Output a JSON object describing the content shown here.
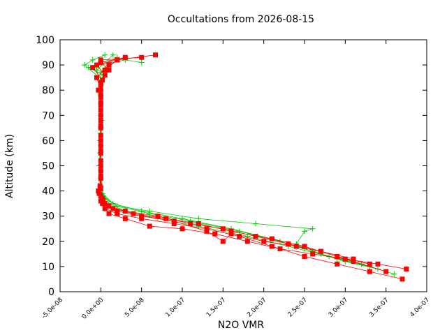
{
  "chart_data": {
    "type": "scatter",
    "title": "Occultations from 2026-08-15",
    "xlabel": "N2O VMR",
    "ylabel": "Altitude (km)",
    "xlim": [
      -5e-08,
      4e-07
    ],
    "ylim": [
      0,
      100
    ],
    "grid": false,
    "legend": "none",
    "x_ticks": [
      -5e-08,
      0,
      5e-08,
      1e-07,
      1.5e-07,
      2e-07,
      2.5e-07,
      3e-07,
      3.5e-07,
      4e-07
    ],
    "x_tick_labels": [
      "-5.0e-08",
      "0.0e+00",
      "5.0e-08",
      "1.0e-07",
      "1.5e-07",
      "2.0e-07",
      "2.5e-07",
      "3.0e-07",
      "3.5e-07",
      "4.0e-07"
    ],
    "y_ticks": [
      0,
      10,
      20,
      30,
      40,
      50,
      60,
      70,
      80,
      90,
      100
    ],
    "y_tick_labels": [
      "0",
      "10",
      "20",
      "30",
      "40",
      "50",
      "60",
      "70",
      "80",
      "90",
      "100"
    ],
    "series": [
      {
        "marker": "plus",
        "color": "#00cc00",
        "profiles": [
          [
            [
              3.6e-07,
              7
            ],
            [
              3.2e-07,
              11
            ],
            [
              2.8e-07,
              14
            ],
            [
              2.3e-07,
              18
            ],
            [
              1.8e-07,
              22
            ],
            [
              1.2e-07,
              26
            ],
            [
              7e-08,
              29
            ],
            [
              3e-08,
              32
            ],
            [
              1e-08,
              35
            ],
            [
              0,
              40
            ],
            [
              -2e-09,
              50
            ],
            [
              -1e-09,
              60
            ],
            [
              0,
              70
            ],
            [
              0,
              80
            ],
            [
              0,
              87
            ],
            [
              1e-08,
              91
            ],
            [
              2e-08,
              93
            ]
          ],
          [
            [
              3.4e-07,
              9
            ],
            [
              3e-07,
              12
            ],
            [
              2.6e-07,
              16
            ],
            [
              2.2e-07,
              20
            ],
            [
              1.7e-07,
              24
            ],
            [
              1.1e-07,
              28
            ],
            [
              6e-08,
              31
            ],
            [
              2e-08,
              34
            ],
            [
              5e-09,
              37
            ],
            [
              0,
              42
            ],
            [
              -1e-09,
              55
            ],
            [
              0,
              65
            ],
            [
              0,
              75
            ],
            [
              2e-09,
              84
            ],
            [
              -2e-08,
              90
            ],
            [
              -1e-08,
              92
            ],
            [
              5e-09,
              94
            ]
          ],
          [
            [
              3.3e-07,
              10
            ],
            [
              2.9e-07,
              13
            ],
            [
              2.5e-07,
              17
            ],
            [
              2.1e-07,
              21
            ],
            [
              1.6e-07,
              25
            ],
            [
              1e-07,
              29
            ],
            [
              5e-08,
              32
            ],
            [
              1.5e-08,
              35
            ],
            [
              2e-09,
              39
            ],
            [
              0,
              48
            ],
            [
              0,
              58
            ],
            [
              1e-09,
              68
            ],
            [
              0,
              78
            ],
            [
              3e-09,
              86
            ],
            [
              -1.5e-08,
              89
            ],
            [
              3e-08,
              92
            ],
            [
              5e-08,
              91
            ]
          ],
          [
            [
              3.2e-07,
              11
            ],
            [
              2.7e-07,
              15
            ],
            [
              2.4e-07,
              19
            ],
            [
              2.5e-07,
              24
            ],
            [
              2.6e-07,
              25
            ],
            [
              1.9e-07,
              27
            ],
            [
              1.2e-07,
              29
            ],
            [
              6e-08,
              32
            ],
            [
              2e-08,
              34
            ],
            [
              3e-09,
              38
            ],
            [
              0,
              45
            ],
            [
              0,
              63
            ],
            [
              0,
              82
            ],
            [
              -5e-09,
              88
            ],
            [
              1.5e-08,
              94
            ]
          ]
        ]
      },
      {
        "marker": "square",
        "color": "#ff0000",
        "profiles": [
          [
            [
              3.75e-07,
              9
            ],
            [
              3.4e-07,
              11
            ],
            [
              3e-07,
              13
            ],
            [
              2.6e-07,
              15
            ],
            [
              2.2e-07,
              17
            ],
            [
              1.8e-07,
              20
            ],
            [
              1.4e-07,
              23
            ],
            [
              1e-07,
              25
            ],
            [
              6e-08,
              26
            ],
            [
              3e-08,
              29
            ],
            [
              1e-08,
              31
            ],
            [
              2e-09,
              35
            ],
            [
              0,
              38
            ],
            [
              0,
              45
            ],
            [
              0,
              55
            ],
            [
              0,
              65
            ],
            [
              0,
              75
            ],
            [
              0,
              82
            ],
            [
              5e-09,
              88
            ],
            [
              2e-08,
              92
            ],
            [
              6.7e-08,
              94
            ]
          ],
          [
            [
              3.7e-07,
              5
            ],
            [
              3.3e-07,
              8
            ],
            [
              2.9e-07,
              11
            ],
            [
              2.5e-07,
              14
            ],
            [
              2.1e-07,
              18
            ],
            [
              1.7e-07,
              22
            ],
            [
              1.3e-07,
              25
            ],
            [
              9e-08,
              27
            ],
            [
              5e-08,
              29
            ],
            [
              2e-08,
              31
            ],
            [
              5e-09,
              33
            ],
            [
              0,
              36
            ],
            [
              -3e-09,
              40
            ],
            [
              0,
              50
            ],
            [
              0,
              60
            ],
            [
              0,
              70
            ],
            [
              0,
              80
            ],
            [
              -5e-09,
              85
            ],
            [
              1e-08,
              90
            ],
            [
              3e-08,
              93
            ]
          ],
          [
            [
              3.5e-07,
              8
            ],
            [
              3.1e-07,
              12
            ],
            [
              2.7e-07,
              16
            ],
            [
              2.3e-07,
              19
            ],
            [
              1.9e-07,
              22
            ],
            [
              1.5e-07,
              25
            ],
            [
              1.1e-07,
              27
            ],
            [
              7e-08,
              30
            ],
            [
              3e-08,
              32
            ],
            [
              1e-08,
              34
            ],
            [
              2e-09,
              37
            ],
            [
              -1e-09,
              42
            ],
            [
              0,
              52
            ],
            [
              0,
              62
            ],
            [
              0,
              72
            ],
            [
              0,
              78
            ],
            [
              2e-09,
              84
            ],
            [
              -1e-08,
              89
            ],
            [
              0,
              92
            ],
            [
              5e-08,
              93
            ]
          ],
          [
            [
              3.3e-07,
              11
            ],
            [
              2.9e-07,
              14
            ],
            [
              2.5e-07,
              18
            ],
            [
              2.1e-07,
              21
            ],
            [
              1.6e-07,
              24
            ],
            [
              1.2e-07,
              27
            ],
            [
              8e-08,
              29
            ],
            [
              4e-08,
              31
            ],
            [
              1.5e-08,
              33
            ],
            [
              3e-09,
              36
            ],
            [
              0,
              41
            ],
            [
              0,
              48
            ],
            [
              0,
              58
            ],
            [
              0,
              68
            ],
            [
              0,
              77
            ],
            [
              -3e-09,
              80
            ],
            [
              5e-09,
              86
            ],
            [
              -5e-09,
              90
            ],
            [
              2e-08,
              92
            ]
          ],
          [
            [
              3.1e-07,
              13
            ],
            [
              2.7e-07,
              16
            ],
            [
              2.4e-07,
              18
            ],
            [
              2e-07,
              20
            ],
            [
              1.6e-07,
              23
            ],
            [
              1.5e-07,
              20
            ],
            [
              1.3e-07,
              24
            ],
            [
              9e-08,
              28
            ],
            [
              5e-08,
              30
            ],
            [
              2e-08,
              32
            ],
            [
              5e-09,
              35
            ],
            [
              -2e-09,
              39
            ],
            [
              0,
              46
            ],
            [
              0,
              56
            ],
            [
              0,
              66
            ],
            [
              0,
              74
            ],
            [
              0,
              83
            ],
            [
              1e-08,
              88
            ],
            [
              0,
              91
            ],
            [
              3e-08,
              93
            ]
          ]
        ]
      }
    ]
  }
}
